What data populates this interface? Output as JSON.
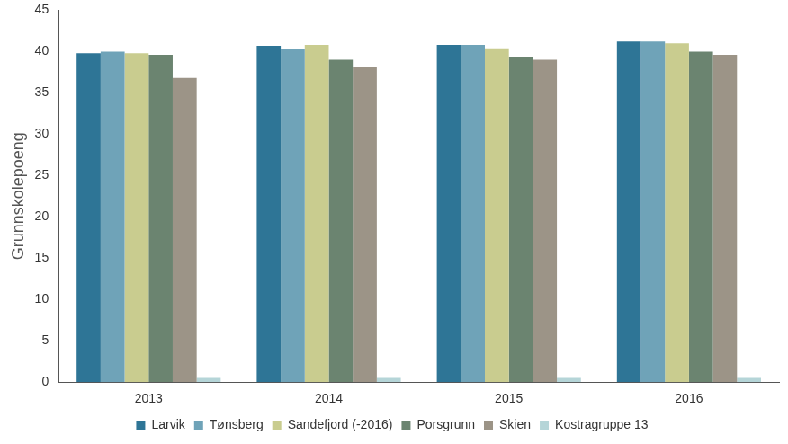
{
  "chart_data": {
    "type": "bar",
    "y_label": "Grunnskolepoeng",
    "categories": [
      "2013",
      "2014",
      "2015",
      "2016"
    ],
    "series": [
      {
        "name": "Larvik",
        "color": "#2e7596",
        "values": [
          39.8,
          40.7,
          40.8,
          41.2
        ]
      },
      {
        "name": "Tønsberg",
        "color": "#6fa3b8",
        "values": [
          40.0,
          40.3,
          40.8,
          41.2
        ]
      },
      {
        "name": "Sandefjord (-2016)",
        "color": "#c9cc8f",
        "values": [
          39.8,
          40.8,
          40.4,
          41.0
        ]
      },
      {
        "name": "Porsgrunn",
        "color": "#6b8470",
        "values": [
          39.6,
          39.0,
          39.4,
          40.0
        ]
      },
      {
        "name": "Skien",
        "color": "#9c9487",
        "values": [
          36.8,
          38.2,
          39.0,
          39.6
        ]
      },
      {
        "name": "Kostragruppe 13",
        "color": "#b5d5d8",
        "values": [
          0.5,
          0.5,
          0.5,
          0.5
        ]
      }
    ],
    "ylim": [
      0,
      45
    ],
    "yticks": [
      0,
      5,
      10,
      15,
      20,
      25,
      30,
      35,
      40,
      45
    ],
    "grid": false,
    "legend": "bottom"
  }
}
